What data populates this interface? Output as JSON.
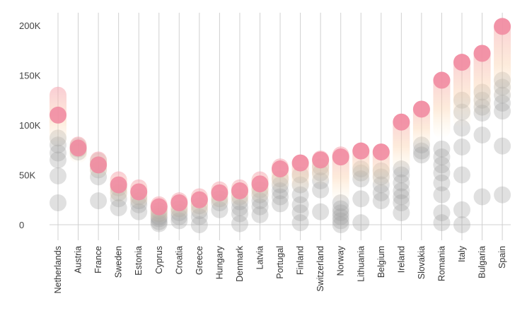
{
  "chart_data": {
    "type": "scatter",
    "title": "",
    "xlabel": "",
    "ylabel": "",
    "ylim": [
      0,
      200000
    ],
    "yticks": [
      {
        "value": 0,
        "label": "0"
      },
      {
        "value": 50000,
        "label": "50K"
      },
      {
        "value": 100000,
        "label": "100K"
      },
      {
        "value": 150000,
        "label": "150K"
      },
      {
        "value": 200000,
        "label": "200K"
      }
    ],
    "grid": {
      "vertical": true,
      "horizontal": false
    },
    "legend": "none",
    "colors": {
      "highlight": "#f08aa0",
      "gradient_top": "#f5a3b0",
      "gradient_bottom": "#fde2b0",
      "history": "#9e9e9e",
      "gridline": "#d0d0d0"
    },
    "categories": [
      "Netherlands",
      "Austria",
      "France",
      "Sweden",
      "Estonia",
      "Cyprus",
      "Croatia",
      "Greece",
      "Hungary",
      "Denmark",
      "Latvia",
      "Portugal",
      "Finland",
      "Switzerland",
      "Norway",
      "Lithuania",
      "Belgium",
      "Ireland",
      "Slovakia",
      "Romania",
      "Italy",
      "Bulgaria",
      "Spain"
    ],
    "highlight_values": [
      110000,
      77000,
      60000,
      40000,
      33000,
      18000,
      22000,
      25000,
      32000,
      34000,
      41000,
      56000,
      62000,
      65000,
      68000,
      74000,
      73000,
      103000,
      116000,
      145000,
      163000,
      172000,
      199000
    ],
    "gradient_ranges": [
      [
        85000,
        130000
      ],
      [
        70000,
        80000
      ],
      [
        55000,
        65000
      ],
      [
        30000,
        45000
      ],
      [
        25000,
        37000
      ],
      [
        10000,
        20000
      ],
      [
        14000,
        24000
      ],
      [
        16000,
        28000
      ],
      [
        24000,
        35000
      ],
      [
        26000,
        37000
      ],
      [
        30000,
        45000
      ],
      [
        42000,
        58000
      ],
      [
        40000,
        62000
      ],
      [
        48000,
        66000
      ],
      [
        30000,
        70000
      ],
      [
        50000,
        74000
      ],
      [
        45000,
        73000
      ],
      [
        60000,
        103000
      ],
      [
        82000,
        116000
      ],
      [
        95000,
        145000
      ],
      [
        105000,
        163000
      ],
      [
        115000,
        172000
      ],
      [
        130000,
        199000
      ]
    ],
    "history_values": [
      [
        22000,
        49000,
        65000,
        72000,
        80000,
        87000
      ],
      [
        73000,
        76000,
        79000
      ],
      [
        24000,
        48000,
        55000,
        60000,
        64000
      ],
      [
        17000,
        26000,
        32000,
        37000
      ],
      [
        13000,
        20000,
        24000,
        28000
      ],
      [
        1000,
        3000,
        6000,
        8000,
        11000,
        14000
      ],
      [
        4000,
        8000,
        12000,
        16000
      ],
      [
        0,
        8000,
        14000,
        19000
      ],
      [
        15000,
        22000,
        26000
      ],
      [
        1000,
        11000,
        17000,
        23000,
        28000
      ],
      [
        10000,
        18000,
        24000,
        30000,
        35000
      ],
      [
        21000,
        28000,
        34000,
        40000,
        46000
      ],
      [
        2000,
        12000,
        20000,
        30000,
        40000,
        50000
      ],
      [
        13000,
        35000,
        44000,
        52000,
        58000
      ],
      [
        0,
        4000,
        8000,
        12000,
        16000,
        22000
      ],
      [
        2000,
        26000,
        46000,
        52000,
        56000
      ],
      [
        24000,
        32000,
        40000,
        48000,
        54000
      ],
      [
        12000,
        22000,
        28000,
        34000,
        42000,
        50000,
        56000
      ],
      [
        70000,
        74000,
        80000
      ],
      [
        2000,
        12000,
        30000,
        42000,
        52000,
        60000,
        68000,
        76000
      ],
      [
        0,
        15000,
        50000,
        78000,
        97000,
        113000,
        125000
      ],
      [
        28000,
        90000,
        112000,
        118000,
        125000,
        133000
      ],
      [
        30000,
        79000,
        114000,
        122000,
        130000,
        138000,
        145000
      ]
    ]
  }
}
